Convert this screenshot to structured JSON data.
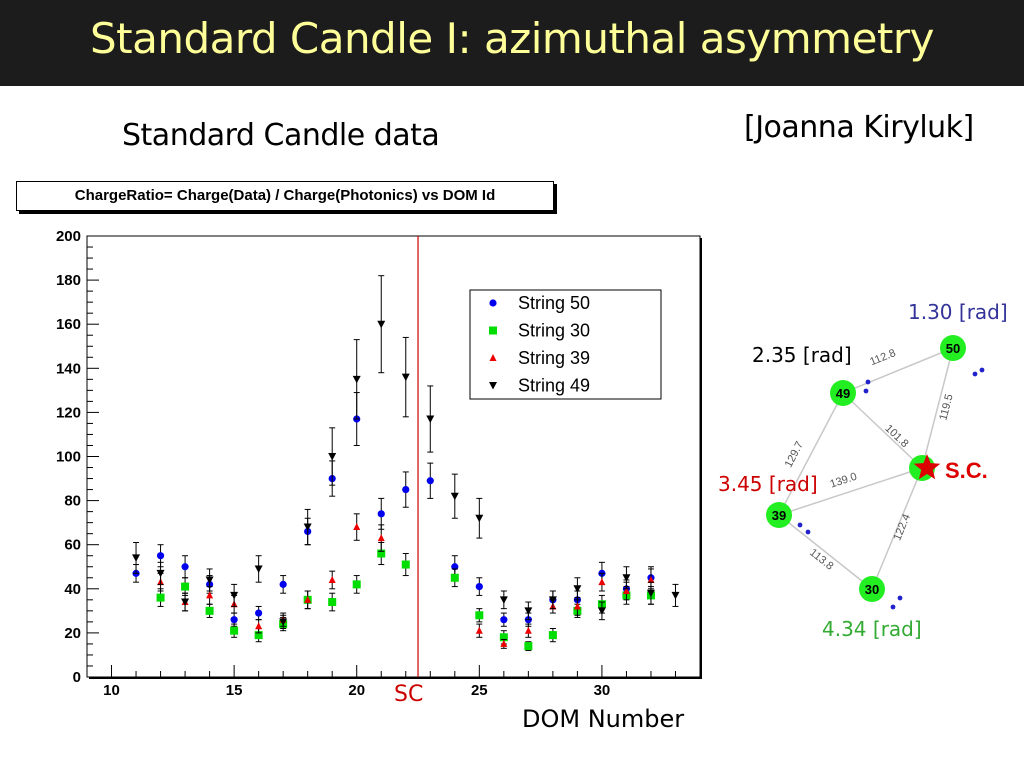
{
  "slide": {
    "title": "Standard Candle I: azimuthal asymmetry",
    "subtitle": "Standard Candle data",
    "credit": "[Joanna Kiryluk]"
  },
  "chart_data": {
    "type": "scatter",
    "title": "ChargeRatio= Charge(Data) / Charge(Photonics) vs DOM Id",
    "xlabel": "DOM Number",
    "ylabel": "",
    "xlim": [
      9,
      34
    ],
    "ylim": [
      0,
      200
    ],
    "xticks": [
      10,
      15,
      20,
      25,
      30
    ],
    "yticks": [
      0,
      20,
      40,
      60,
      80,
      100,
      120,
      140,
      160,
      180,
      200
    ],
    "legend_position": "top-right",
    "marker_line": {
      "x": 22.5,
      "label": "SC",
      "color": "#cc0000"
    },
    "series": [
      {
        "name": "String 50",
        "color": "#0000ee",
        "marker": "circle",
        "points": [
          {
            "x": 11,
            "y": 47,
            "err": 4
          },
          {
            "x": 12,
            "y": 55,
            "err": 5
          },
          {
            "x": 13,
            "y": 50,
            "err": 5
          },
          {
            "x": 14,
            "y": 42,
            "err": 4
          },
          {
            "x": 15,
            "y": 26,
            "err": 3
          },
          {
            "x": 16,
            "y": 29,
            "err": 3
          },
          {
            "x": 17,
            "y": 42,
            "err": 4
          },
          {
            "x": 18,
            "y": 66,
            "err": 6
          },
          {
            "x": 19,
            "y": 90,
            "err": 8
          },
          {
            "x": 20,
            "y": 117,
            "err": 12
          },
          {
            "x": 21,
            "y": 74,
            "err": 7
          },
          {
            "x": 22,
            "y": 85,
            "err": 8
          },
          {
            "x": 23,
            "y": 89,
            "err": 8
          },
          {
            "x": 24,
            "y": 50,
            "err": 5
          },
          {
            "x": 25,
            "y": 41,
            "err": 4
          },
          {
            "x": 26,
            "y": 26,
            "err": 3
          },
          {
            "x": 27,
            "y": 26,
            "err": 3
          },
          {
            "x": 28,
            "y": 35,
            "err": 4
          },
          {
            "x": 29,
            "y": 35,
            "err": 4
          },
          {
            "x": 30,
            "y": 47,
            "err": 5
          },
          {
            "x": 31,
            "y": 40,
            "err": 4
          },
          {
            "x": 32,
            "y": 45,
            "err": 5
          }
        ]
      },
      {
        "name": "String 30",
        "color": "#00dd00",
        "marker": "square",
        "points": [
          {
            "x": 12,
            "y": 36,
            "err": 4
          },
          {
            "x": 13,
            "y": 41,
            "err": 4
          },
          {
            "x": 14,
            "y": 30,
            "err": 3
          },
          {
            "x": 15,
            "y": 21,
            "err": 3
          },
          {
            "x": 16,
            "y": 19,
            "err": 3
          },
          {
            "x": 17,
            "y": 24,
            "err": 3
          },
          {
            "x": 18,
            "y": 35,
            "err": 4
          },
          {
            "x": 19,
            "y": 34,
            "err": 4
          },
          {
            "x": 20,
            "y": 42,
            "err": 4
          },
          {
            "x": 21,
            "y": 56,
            "err": 5
          },
          {
            "x": 22,
            "y": 51,
            "err": 5
          },
          {
            "x": 24,
            "y": 45,
            "err": 4
          },
          {
            "x": 25,
            "y": 28,
            "err": 3
          },
          {
            "x": 26,
            "y": 18,
            "err": 3
          },
          {
            "x": 27,
            "y": 14,
            "err": 2
          },
          {
            "x": 28,
            "y": 19,
            "err": 3
          },
          {
            "x": 29,
            "y": 30,
            "err": 3
          },
          {
            "x": 30,
            "y": 33,
            "err": 4
          },
          {
            "x": 31,
            "y": 37,
            "err": 4
          },
          {
            "x": 32,
            "y": 37,
            "err": 4
          }
        ]
      },
      {
        "name": "String 39",
        "color": "#ee0000",
        "marker": "triangle-up",
        "points": [
          {
            "x": 12,
            "y": 43,
            "err": 4
          },
          {
            "x": 13,
            "y": 34,
            "err": 4
          },
          {
            "x": 14,
            "y": 37,
            "err": 4
          },
          {
            "x": 15,
            "y": 33,
            "err": 4
          },
          {
            "x": 16,
            "y": 23,
            "err": 3
          },
          {
            "x": 17,
            "y": 26,
            "err": 3
          },
          {
            "x": 18,
            "y": 35,
            "err": 4
          },
          {
            "x": 19,
            "y": 44,
            "err": 4
          },
          {
            "x": 20,
            "y": 68,
            "err": 6
          },
          {
            "x": 21,
            "y": 63,
            "err": 6
          },
          {
            "x": 25,
            "y": 21,
            "err": 3
          },
          {
            "x": 26,
            "y": 15,
            "err": 2
          },
          {
            "x": 27,
            "y": 21,
            "err": 3
          },
          {
            "x": 28,
            "y": 32,
            "err": 3
          },
          {
            "x": 29,
            "y": 32,
            "err": 4
          },
          {
            "x": 30,
            "y": 43,
            "err": 4
          },
          {
            "x": 31,
            "y": 39,
            "err": 4
          },
          {
            "x": 32,
            "y": 44,
            "err": 5
          }
        ]
      },
      {
        "name": "String 49",
        "color": "#000000",
        "marker": "triangle-down",
        "points": [
          {
            "x": 11,
            "y": 54,
            "err": 7
          },
          {
            "x": 12,
            "y": 47,
            "err": 5
          },
          {
            "x": 13,
            "y": 34,
            "err": 4
          },
          {
            "x": 14,
            "y": 44,
            "err": 5
          },
          {
            "x": 15,
            "y": 37,
            "err": 5
          },
          {
            "x": 16,
            "y": 49,
            "err": 6
          },
          {
            "x": 17,
            "y": 25,
            "err": 3
          },
          {
            "x": 18,
            "y": 68,
            "err": 8
          },
          {
            "x": 19,
            "y": 100,
            "err": 13
          },
          {
            "x": 20,
            "y": 135,
            "err": 18
          },
          {
            "x": 21,
            "y": 160,
            "err": 22
          },
          {
            "x": 22,
            "y": 136,
            "err": 18
          },
          {
            "x": 23,
            "y": 117,
            "err": 15
          },
          {
            "x": 24,
            "y": 82,
            "err": 10
          },
          {
            "x": 25,
            "y": 72,
            "err": 9
          },
          {
            "x": 26,
            "y": 35,
            "err": 4
          },
          {
            "x": 27,
            "y": 30,
            "err": 4
          },
          {
            "x": 28,
            "y": 35,
            "err": 4
          },
          {
            "x": 29,
            "y": 40,
            "err": 5
          },
          {
            "x": 30,
            "y": 30,
            "err": 4
          },
          {
            "x": 31,
            "y": 45,
            "err": 5
          },
          {
            "x": 32,
            "y": 38,
            "err": 5
          },
          {
            "x": 33,
            "y": 37,
            "err": 5
          }
        ]
      }
    ]
  },
  "diagram": {
    "strings": [
      {
        "id": "s50",
        "label": "50"
      },
      {
        "id": "s49",
        "label": "49"
      },
      {
        "id": "s39",
        "label": "39"
      },
      {
        "id": "s30",
        "label": "30"
      }
    ],
    "source_label": "S.C.",
    "edges": [
      {
        "from": "s49",
        "to": "s50",
        "label": "112.8"
      },
      {
        "from": "s50",
        "to": "sc",
        "label": "119.5"
      },
      {
        "from": "s49",
        "to": "sc",
        "label": "101.8"
      },
      {
        "from": "s49",
        "to": "s39",
        "label": "129.7"
      },
      {
        "from": "s39",
        "to": "sc",
        "label": "139.0"
      },
      {
        "from": "s39",
        "to": "s30",
        "label": "113.8"
      },
      {
        "from": "s30",
        "to": "sc",
        "label": "122.4"
      }
    ],
    "angle_labels": [
      {
        "text": "1.30 [rad]",
        "color": "#333399"
      },
      {
        "text": "2.35 [rad]",
        "color": "#000000"
      },
      {
        "text": "3.45 [rad]",
        "color": "#cc0000"
      },
      {
        "text": "4.34 [rad]",
        "color": "#33aa33"
      }
    ],
    "node_color": "#22ee22",
    "source_color": "#dd0000"
  }
}
